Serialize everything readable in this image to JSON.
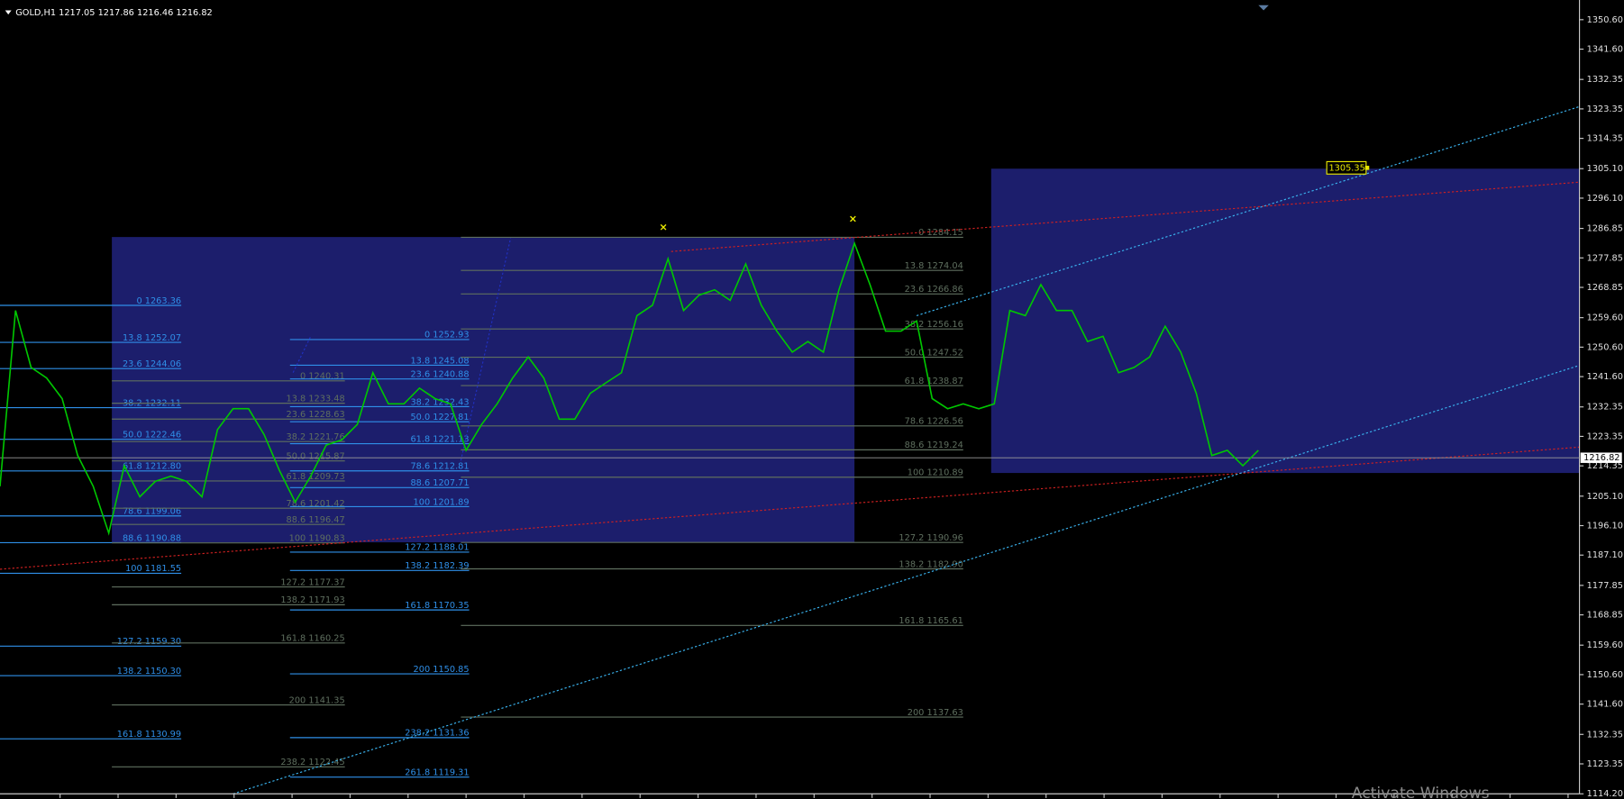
{
  "header": {
    "title": "GOLD,H1  1217.05 1217.86 1216.46 1216.82"
  },
  "chart_data": {
    "type": "line",
    "color": "#00c800",
    "values": [
      1208.1,
      1261.8,
      1244.4,
      1241.2,
      1234.9,
      1217.5,
      1208.1,
      1193.8,
      1214.4,
      1204.9,
      1209.6,
      1211.2,
      1209.6,
      1204.9,
      1225.4,
      1231.8,
      1231.8,
      1223.9,
      1212.8,
      1203.3,
      1211.2,
      1220.7,
      1222.3,
      1227.0,
      1242.8,
      1233.3,
      1233.3,
      1238.1,
      1234.9,
      1233.3,
      1219.1,
      1227.0,
      1233.3,
      1241.2,
      1247.6,
      1241.2,
      1228.6,
      1228.6,
      1236.5,
      1239.7,
      1242.8,
      1260.2,
      1263.4,
      1277.6,
      1261.8,
      1266.5,
      1268.1,
      1264.9,
      1276.0,
      1263.4,
      1255.5,
      1249.1,
      1252.3,
      1249.1,
      1268.1,
      1282.3,
      1269.7,
      1255.5,
      1255.5,
      1258.6,
      1234.9,
      1231.8,
      1233.3,
      1231.8,
      1233.3,
      1261.8,
      1260.2,
      1269.7,
      1261.8,
      1261.8,
      1252.3,
      1253.9,
      1242.8,
      1244.4,
      1247.6,
      1257.0,
      1249.1,
      1236.5,
      1217.5,
      1219.1,
      1214.4,
      1219.1
    ],
    "ylim": [
      1114.2,
      1350.6
    ],
    "yticks": [
      {
        "value": 1350.6,
        "label": "1350.60"
      },
      {
        "value": 1341.6,
        "label": "1341.60"
      },
      1332.35,
      1323.35,
      1314.35,
      {
        "value": 1305.1,
        "label": "1305.10"
      },
      {
        "value": 1296.1,
        "label": "1296.10"
      },
      1286.85,
      1277.85,
      1268.85,
      {
        "value": 1259.6,
        "label": "1259.60"
      },
      {
        "value": 1250.6,
        "label": "1250.60"
      },
      {
        "value": 1241.6,
        "label": "1241.60"
      },
      1232.35,
      1223.35,
      1214.35,
      {
        "value": 1205.1,
        "label": "1205.10"
      },
      {
        "value": 1196.1,
        "label": "1196.10"
      },
      {
        "value": 1187.1,
        "label": "1187.10"
      },
      1177.85,
      1168.85,
      {
        "value": 1159.6,
        "label": "1159.60"
      },
      {
        "value": 1150.6,
        "label": "1150.60"
      },
      {
        "value": 1141.6,
        "label": "1141.60"
      },
      1132.35,
      1123.35,
      {
        "value": 1114.2,
        "label": "1114.20"
      }
    ],
    "current_price": 1216.82,
    "target": 1305.35,
    "fib_sets": [
      {
        "color": "#2f8fe8",
        "levels": [
          {
            "value": 1263.36,
            "label": "0 1263.36"
          },
          {
            "value": 1252.07,
            "label": "13.8 1252.07"
          },
          {
            "value": 1244.06,
            "label": "23.6 1244.06"
          },
          {
            "value": 1232.11,
            "label": "38.2 1232.11"
          },
          {
            "value": 1222.46,
            "label": "50.0 1222.46"
          },
          {
            "value": 1212.8,
            "label": "61.8 1212.80"
          },
          {
            "value": 1199.06,
            "label": "78.6 1199.06"
          },
          {
            "value": 1190.88,
            "label": "88.6 1190.88"
          },
          {
            "value": 1181.55,
            "label": "100 1181.55"
          },
          {
            "value": 1159.3,
            "label": "127.2 1159.30"
          },
          {
            "value": 1150.3,
            "label": "138.2 1150.30"
          },
          {
            "value": 1130.99,
            "label": "161.8 1130.99"
          }
        ]
      },
      {
        "color": "#5f6f5f",
        "levels": [
          {
            "value": 1240.31,
            "label": "0 1240.31"
          },
          {
            "value": 1233.48,
            "label": "13.8 1233.48"
          },
          {
            "value": 1228.63,
            "label": "23.6 1228.63"
          },
          {
            "value": 1221.76,
            "label": "38.2 1221.76"
          },
          {
            "value": 1215.87,
            "label": "50.0 1215.87"
          },
          {
            "value": 1209.73,
            "label": "61.8 1209.73"
          },
          {
            "value": 1201.42,
            "label": "78.6 1201.42"
          },
          {
            "value": 1196.47,
            "label": "88.6 1196.47"
          },
          {
            "value": 1190.83,
            "label": "100 1190.83"
          },
          {
            "value": 1177.37,
            "label": "127.2 1177.37"
          },
          {
            "value": 1171.93,
            "label": "138.2 1171.93"
          },
          {
            "value": 1160.25,
            "label": "161.8 1160.25"
          },
          {
            "value": 1141.35,
            "label": "200 1141.35"
          },
          {
            "value": 1122.45,
            "label": "238.2 1122.45"
          }
        ]
      },
      {
        "color": "#2f8fe8",
        "levels": [
          {
            "value": 1252.93,
            "label": "0 1252.93"
          },
          {
            "value": 1245.08,
            "label": "13.8 1245.08"
          },
          {
            "value": 1240.88,
            "label": "23.6 1240.88"
          },
          {
            "value": 1232.43,
            "label": "38.2 1232.43"
          },
          {
            "value": 1227.81,
            "label": "50.0 1227.81"
          },
          {
            "value": 1221.13,
            "label": "61.8 1221.13"
          },
          {
            "value": 1212.81,
            "label": "78.6 1212.81"
          },
          {
            "value": 1207.71,
            "label": "88.6 1207.71"
          },
          {
            "value": 1201.89,
            "label": "100 1201.89"
          },
          {
            "value": 1188.01,
            "label": "127.2 1188.01"
          },
          {
            "value": 1182.39,
            "label": "138.2 1182.39"
          },
          {
            "value": 1170.35,
            "label": "161.8 1170.35"
          },
          {
            "value": 1150.85,
            "label": "200 1150.85"
          },
          {
            "value": 1131.36,
            "label": "238.2 1131.36"
          },
          {
            "value": 1119.31,
            "label": "261.8 1119.31"
          }
        ]
      },
      {
        "color": "#5f6f5f",
        "levels": [
          {
            "value": 1284.15,
            "label": "0 1284.15"
          },
          {
            "value": 1274.04,
            "label": "13.8 1274.04"
          },
          {
            "value": 1266.86,
            "label": "23.6 1266.86"
          },
          {
            "value": 1256.16,
            "label": "38.2 1256.16"
          },
          {
            "value": 1247.52,
            "label": "50.0 1247.52"
          },
          {
            "value": 1238.87,
            "label": "61.8 1238.87"
          },
          {
            "value": 1226.56,
            "label": "78.6 1226.56"
          },
          {
            "value": 1219.24,
            "label": "88.6 1219.24"
          },
          {
            "value": 1210.89,
            "label": "100 1210.89"
          },
          {
            "value": 1190.96,
            "label": "127.2 1190.96"
          },
          {
            "value": 1182.9,
            "label": "138.2 1182.90"
          },
          {
            "value": 1165.61,
            "label": "161.8 1165.61"
          },
          {
            "value": 1137.63,
            "label": "200 1137.63"
          }
        ]
      }
    ]
  },
  "watermark": "Activate Windows"
}
